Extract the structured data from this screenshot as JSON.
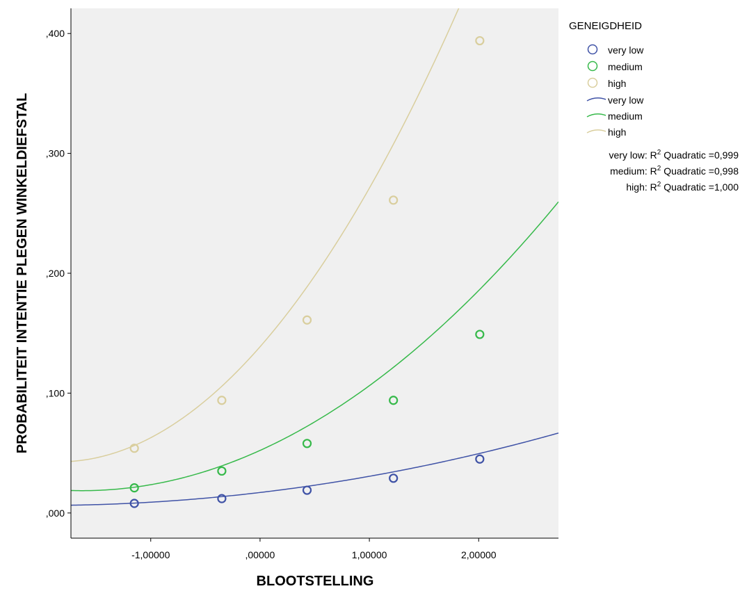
{
  "chart_data": {
    "type": "scatter",
    "title": "",
    "xlabel": "BLOOTSTELLING",
    "ylabel": "PROBABILITEIT INTENTIE PLEGEN WINKELDIEFSTAL",
    "xlim": [
      -1.73,
      2.73
    ],
    "ylim": [
      -0.021,
      0.421
    ],
    "x_ticks": [
      -1.0,
      0.0,
      1.0,
      2.0
    ],
    "x_tick_labels": [
      "-1,00000",
      ",00000",
      "1,00000",
      "2,00000"
    ],
    "y_ticks": [
      0.0,
      0.1,
      0.2,
      0.3,
      0.4
    ],
    "y_tick_labels": [
      ",000",
      ",100",
      ",200",
      ",300",
      ",400"
    ],
    "grid": false,
    "background": "#f0f0f0",
    "legend_position": "right",
    "legend_title": "GENEIGDHEID",
    "x": [
      -1.15,
      -0.35,
      0.43,
      1.22,
      2.01
    ],
    "series": [
      {
        "name": "very low",
        "color": "#3f52a6",
        "values": [
          0.008,
          0.012,
          0.019,
          0.029,
          0.045
        ],
        "fit": {
          "type": "quadratic",
          "a": 0.0171,
          "b": 0.0108,
          "c": 0.0027
        },
        "r2_label": "very low: R",
        "r2_suffix": " Quadratic =0,999"
      },
      {
        "name": "medium",
        "color": "#36b94a",
        "values": [
          0.021,
          0.035,
          0.058,
          0.094,
          0.149
        ],
        "fit": {
          "type": "quadratic",
          "a": 0.0522,
          "b": 0.0413,
          "c": 0.0127
        },
        "r2_label": "medium: R",
        "r2_suffix": " Quadratic =0,998"
      },
      {
        "name": "high",
        "color": "#d9ce9d",
        "values": [
          0.054,
          0.094,
          0.161,
          0.261,
          0.394
        ],
        "fit": {
          "type": "quadratic",
          "a": 0.1387,
          "b": 0.1041,
          "c": 0.0282
        },
        "r2_label": "high: R",
        "r2_suffix": " Quadratic =1,000"
      }
    ],
    "superscript": "2"
  }
}
